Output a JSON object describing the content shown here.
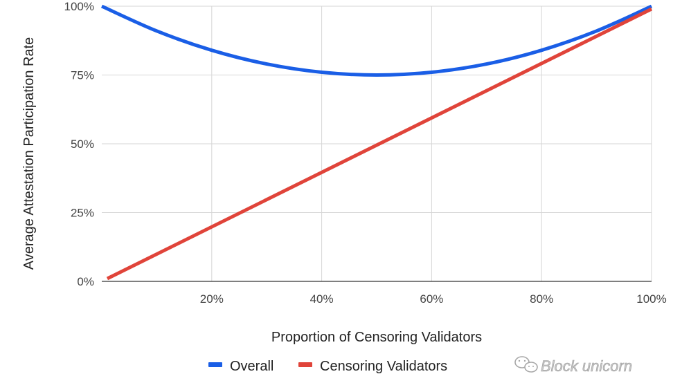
{
  "chart_data": {
    "type": "line",
    "title": "",
    "xlabel": "Proportion of Censoring Validators",
    "ylabel": "Average Attestation Participation Rate",
    "x_ticks": [
      "20%",
      "40%",
      "60%",
      "80%",
      "100%"
    ],
    "x_tick_values": [
      20,
      40,
      60,
      80,
      100
    ],
    "y_ticks": [
      "0%",
      "25%",
      "50%",
      "75%",
      "100%"
    ],
    "y_tick_values": [
      0,
      25,
      50,
      75,
      100
    ],
    "xlim": [
      0,
      100
    ],
    "ylim": [
      0,
      100
    ],
    "grid": true,
    "legend_position": "bottom",
    "series": [
      {
        "name": "Overall",
        "color": "#1a5ee6",
        "x": [
          0,
          10,
          20,
          30,
          40,
          50,
          60,
          70,
          80,
          90,
          100
        ],
        "y": [
          100,
          91,
          84,
          79,
          76,
          75,
          76,
          79,
          84,
          91,
          100
        ]
      },
      {
        "name": "Censoring Validators",
        "color": "#e0443a",
        "x": [
          1,
          100
        ],
        "y": [
          1,
          99
        ]
      }
    ]
  },
  "watermark": {
    "text": "Block unicorn",
    "icon": "wechat-icon"
  }
}
